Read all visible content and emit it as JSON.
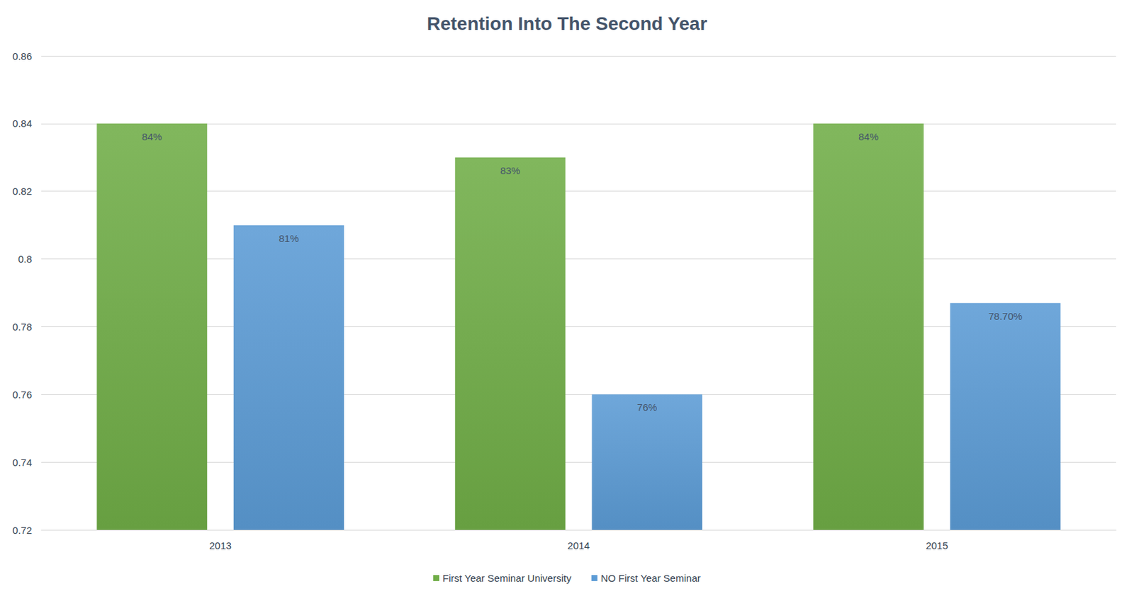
{
  "chart_data": {
    "type": "bar",
    "title": "Retention Into The Second Year",
    "categories": [
      "2013",
      "2014",
      "2015"
    ],
    "series": [
      {
        "name": "First Year Seminar University",
        "color": "#70ad47",
        "values": [
          0.84,
          0.83,
          0.84
        ],
        "value_labels": [
          "84%",
          "83%",
          "84%"
        ]
      },
      {
        "name": "NO First Year Seminar",
        "color": "#5b9bd5",
        "values": [
          0.81,
          0.76,
          0.787
        ],
        "value_labels": [
          "81%",
          "76%",
          "78.70%"
        ]
      }
    ],
    "ylim": [
      0.72,
      0.86
    ],
    "yticks": [
      0.72,
      0.74,
      0.76,
      0.78,
      0.8,
      0.82,
      0.84,
      0.86
    ],
    "grid": true,
    "legend": "bottom",
    "data_labels": true
  }
}
